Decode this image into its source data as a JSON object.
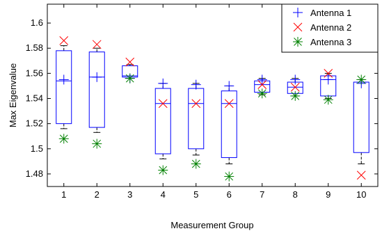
{
  "chart_data": {
    "type": "box",
    "xlabel": "Measurement Group",
    "ylabel": "Max Eigenvalue",
    "categories": [
      "1",
      "2",
      "3",
      "4",
      "5",
      "6",
      "7",
      "8",
      "9",
      "10"
    ],
    "xlim": [
      0.5,
      10.5
    ],
    "ylim": [
      1.47,
      1.615
    ],
    "yticks": [
      1.48,
      1.5,
      1.52,
      1.54,
      1.56,
      1.58,
      1.6
    ],
    "ytick_labels": [
      "1.48",
      "1.5",
      "1.52",
      "1.54",
      "1.56",
      "1.58",
      "1.6"
    ],
    "grid": false,
    "legend_position": "top-right",
    "box_color": "#0000ff",
    "whisker_color": "#000000",
    "boxes": [
      {
        "group": 1,
        "q1": 1.52,
        "median": 1.554,
        "q3": 1.578,
        "whisker_low": 1.516,
        "whisker_high": 1.582
      },
      {
        "group": 2,
        "q1": 1.517,
        "median": 1.557,
        "q3": 1.577,
        "whisker_low": 1.513,
        "whisker_high": 1.58
      },
      {
        "group": 3,
        "q1": 1.557,
        "median": 1.558,
        "q3": 1.566,
        "whisker_low": 1.556,
        "whisker_high": 1.567
      },
      {
        "group": 4,
        "q1": 1.496,
        "median": 1.536,
        "q3": 1.548,
        "whisker_low": 1.492,
        "whisker_high": 1.552
      },
      {
        "group": 5,
        "q1": 1.5,
        "median": 1.536,
        "q3": 1.548,
        "whisker_low": 1.495,
        "whisker_high": 1.552
      },
      {
        "group": 6,
        "q1": 1.493,
        "median": 1.536,
        "q3": 1.546,
        "whisker_low": 1.488,
        "whisker_high": 1.55
      },
      {
        "group": 7,
        "q1": 1.545,
        "median": 1.551,
        "q3": 1.554,
        "whisker_low": 1.543,
        "whisker_high": 1.556
      },
      {
        "group": 8,
        "q1": 1.544,
        "median": 1.549,
        "q3": 1.553,
        "whisker_low": 1.542,
        "whisker_high": 1.556
      },
      {
        "group": 9,
        "q1": 1.542,
        "median": 1.555,
        "q3": 1.558,
        "whisker_low": 1.54,
        "whisker_high": 1.56
      },
      {
        "group": 10,
        "q1": 1.497,
        "median": 1.553,
        "q3": 1.553,
        "whisker_low": 1.488,
        "whisker_high": 1.555
      }
    ],
    "series": [
      {
        "name": "Antenna 1",
        "marker": "plus",
        "color": "#0000ff",
        "values": [
          1.555,
          1.557,
          1.556,
          1.552,
          1.551,
          1.55,
          1.555,
          1.555,
          1.555,
          1.552
        ]
      },
      {
        "name": "Antenna 2",
        "marker": "x",
        "color": "#ff0000",
        "values": [
          1.586,
          1.583,
          1.569,
          1.536,
          1.536,
          1.536,
          1.551,
          1.549,
          1.56,
          1.479
        ]
      },
      {
        "name": "Antenna 3",
        "marker": "asterisk",
        "color": "#008000",
        "values": [
          1.508,
          1.504,
          1.556,
          1.483,
          1.488,
          1.478,
          1.544,
          1.542,
          1.539,
          1.555
        ]
      }
    ]
  }
}
